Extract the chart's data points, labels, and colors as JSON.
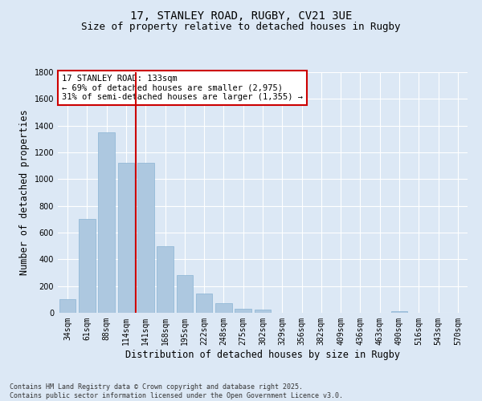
{
  "title_line1": "17, STANLEY ROAD, RUGBY, CV21 3UE",
  "title_line2": "Size of property relative to detached houses in Rugby",
  "xlabel": "Distribution of detached houses by size in Rugby",
  "ylabel": "Number of detached properties",
  "categories": [
    "34sqm",
    "61sqm",
    "88sqm",
    "114sqm",
    "141sqm",
    "168sqm",
    "195sqm",
    "222sqm",
    "248sqm",
    "275sqm",
    "302sqm",
    "329sqm",
    "356sqm",
    "382sqm",
    "409sqm",
    "436sqm",
    "463sqm",
    "490sqm",
    "516sqm",
    "543sqm",
    "570sqm"
  ],
  "values": [
    100,
    700,
    1350,
    1125,
    1125,
    500,
    280,
    145,
    75,
    30,
    25,
    0,
    0,
    0,
    0,
    0,
    0,
    15,
    0,
    0,
    0
  ],
  "bar_color": "#adc8e0",
  "bar_edge_color": "#8ab4d4",
  "vline_color": "#cc0000",
  "annotation_text": "17 STANLEY ROAD: 133sqm\n← 69% of detached houses are smaller (2,975)\n31% of semi-detached houses are larger (1,355) →",
  "annotation_box_color": "#ffffff",
  "annotation_box_edge": "#cc0000",
  "ylim": [
    0,
    1800
  ],
  "yticks": [
    0,
    200,
    400,
    600,
    800,
    1000,
    1200,
    1400,
    1600,
    1800
  ],
  "bg_color": "#dce8f5",
  "grid_color": "#ffffff",
  "footer_text": "Contains HM Land Registry data © Crown copyright and database right 2025.\nContains public sector information licensed under the Open Government Licence v3.0.",
  "title_fontsize": 10,
  "subtitle_fontsize": 9,
  "tick_fontsize": 7,
  "label_fontsize": 8.5,
  "annot_fontsize": 7.5
}
